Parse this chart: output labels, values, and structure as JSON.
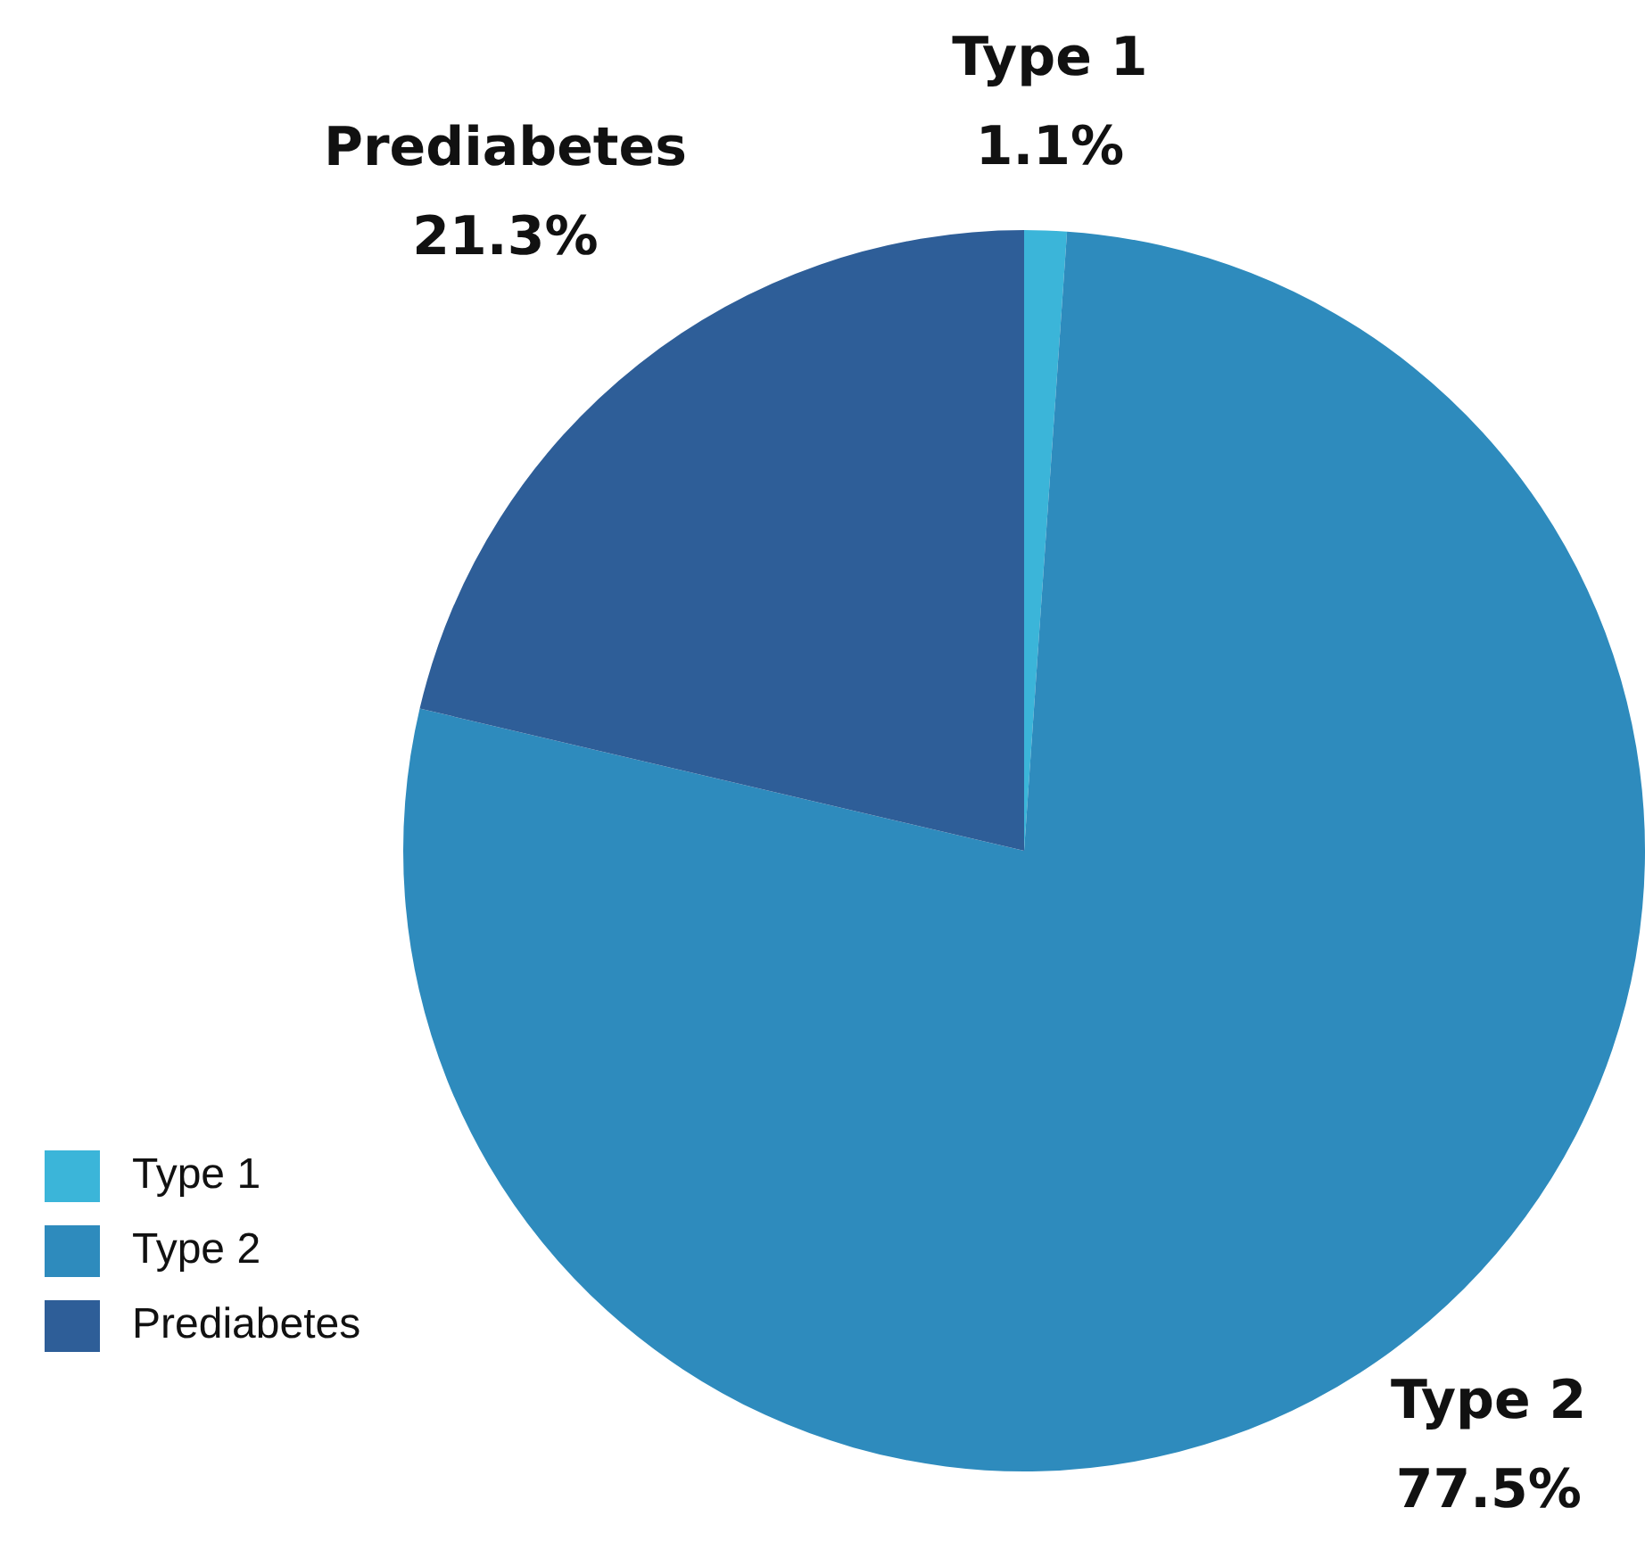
{
  "chart_data": {
    "type": "pie",
    "categories": [
      "Type 1",
      "Type 2",
      "Prediabetes"
    ],
    "values": [
      1.1,
      77.5,
      21.3
    ],
    "colors": [
      "#3bb5d9",
      "#2e8bbd",
      "#2e5e98"
    ],
    "value_labels": [
      "1.1%",
      "77.5%",
      "21.3%"
    ],
    "legend": "bottom left"
  }
}
